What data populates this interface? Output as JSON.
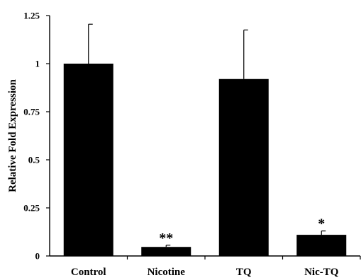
{
  "chart_data": {
    "type": "bar",
    "title": "",
    "xlabel": "",
    "ylabel": "Relative Fold Expression",
    "categories": [
      "Control",
      "Nicotine",
      "TQ",
      "Nic-TQ"
    ],
    "values": [
      1.0,
      0.047,
      0.92,
      0.11
    ],
    "error_upper": [
      0.205,
      0.009,
      0.255,
      0.02
    ],
    "annotations": [
      "",
      "**",
      "",
      "*"
    ],
    "ylim": [
      0,
      1.25
    ],
    "yticks": [
      0,
      0.25,
      0.5,
      0.75,
      1,
      1.25
    ],
    "ytick_labels": [
      "0",
      "0.25",
      "0.5",
      "0.75",
      "1",
      "1.25"
    ],
    "grid": false,
    "bar_color": "#000000"
  }
}
